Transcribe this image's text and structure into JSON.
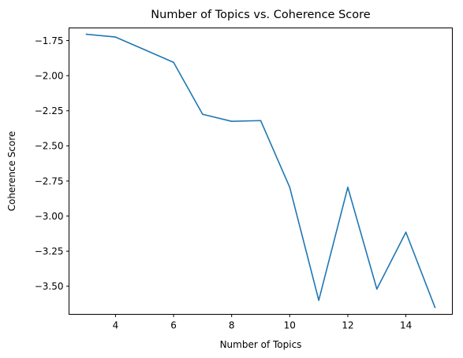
{
  "chart_data": {
    "type": "line",
    "title": "Number of Topics vs. Coherence Score",
    "xlabel": "Number of Topics",
    "ylabel": "Coherence Score",
    "xlim": [
      2.4,
      15.6
    ],
    "ylim": [
      -3.7,
      -1.66
    ],
    "x_ticks": [
      4,
      6,
      8,
      10,
      12,
      14
    ],
    "x_tick_labels": [
      "4",
      "6",
      "8",
      "10",
      "12",
      "14"
    ],
    "y_ticks": [
      -1.75,
      -2.0,
      -2.25,
      -2.5,
      -2.75,
      -3.0,
      -3.25,
      -3.5
    ],
    "y_tick_labels": [
      "−1.75",
      "−2.00",
      "−2.25",
      "−2.50",
      "−2.75",
      "−3.00",
      "−3.25",
      "−3.50"
    ],
    "grid": false,
    "series": [
      {
        "color": "#1f77b4",
        "x": [
          3,
          4,
          5,
          6,
          7,
          8,
          9,
          10,
          11,
          12,
          13,
          14,
          15
        ],
        "y": [
          -1.705,
          -1.725,
          -1.815,
          -1.905,
          -2.275,
          -2.325,
          -2.32,
          -2.795,
          -3.6,
          -2.795,
          -3.52,
          -3.115,
          -3.65
        ]
      }
    ]
  }
}
